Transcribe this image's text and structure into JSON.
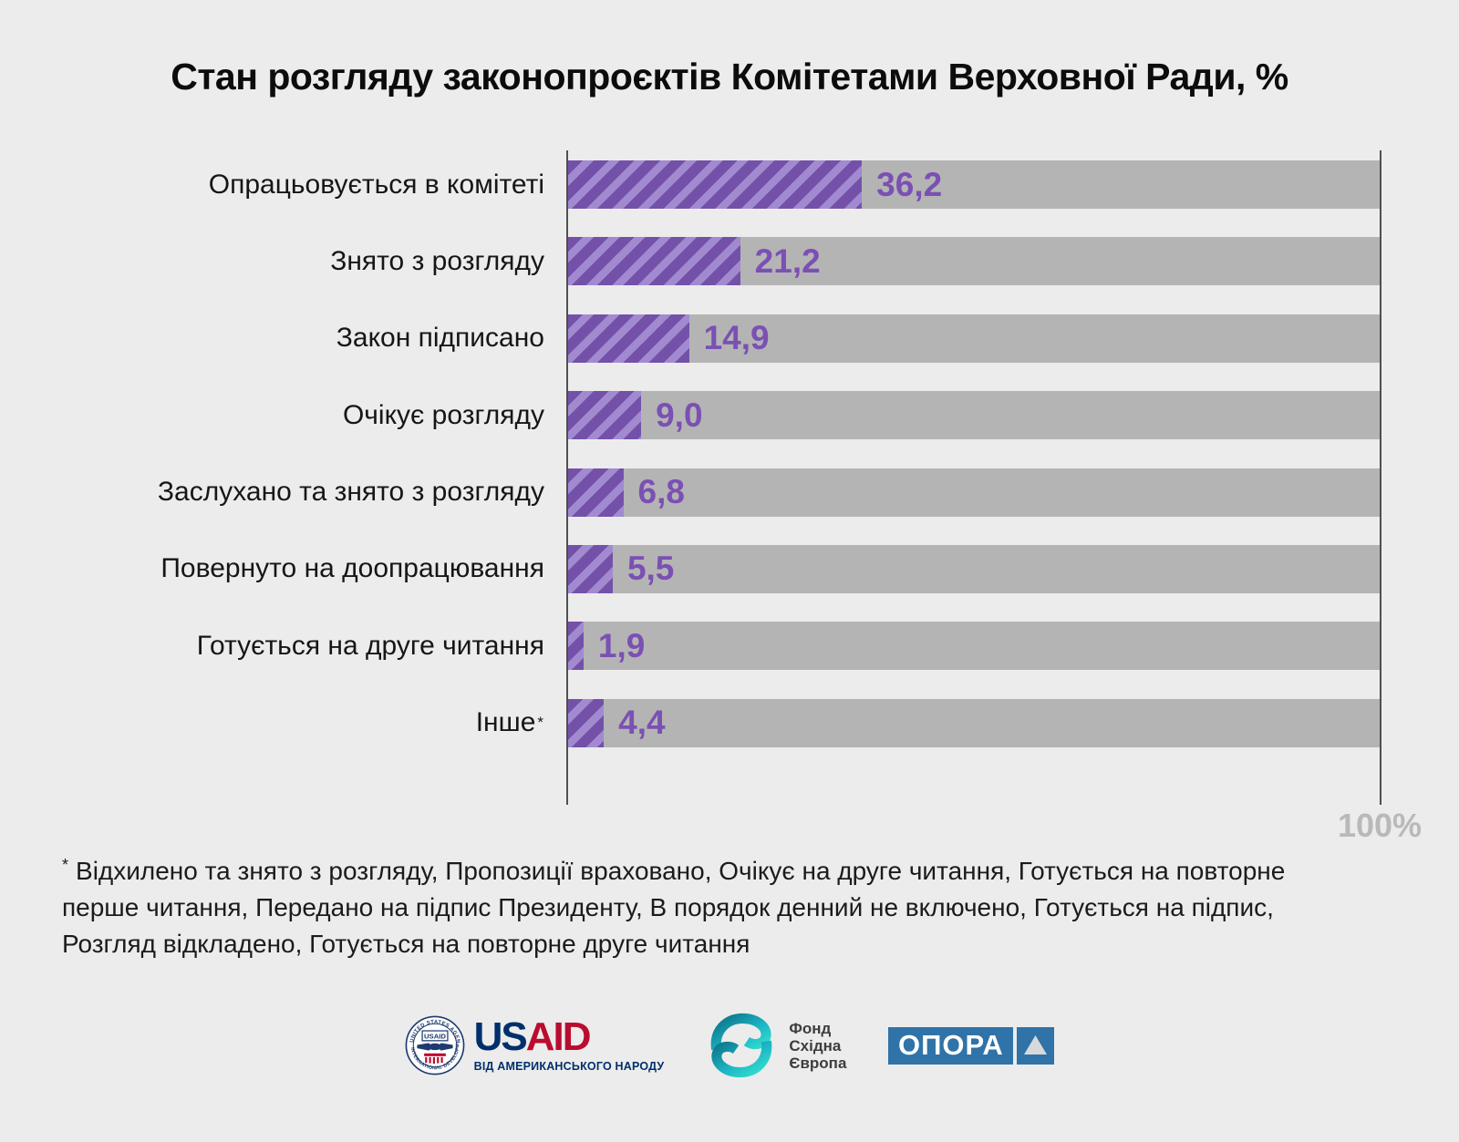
{
  "title": "Стан розгляду законопроєктів Комітетами Верховної Ради, %",
  "chart_data": {
    "type": "bar",
    "orientation": "horizontal",
    "title": "Стан розгляду законопроєктів Комітетами Верховної Ради, %",
    "categories": [
      "Опрацьовується в комітеті",
      "Знято з розгляду",
      "Закон підписано",
      "Очікує розгляду",
      "Заслухано та знято з розгляду",
      "Повернуто на доопрацювання",
      "Готується на друге читання",
      "Інше"
    ],
    "values": [
      36.2,
      21.2,
      14.9,
      9.0,
      6.8,
      5.5,
      1.9,
      4.4
    ],
    "value_labels": [
      "36,2",
      "21,2",
      "14,9",
      "9,0",
      "6,8",
      "5,5",
      "1,9",
      "4,4"
    ],
    "xlim": [
      0,
      100
    ],
    "axis_end_label": "100%",
    "grid": false,
    "legend": false,
    "colors": {
      "bar_stripe_dark": "#7451a9",
      "bar_stripe_light": "#a28ad0",
      "track": "#b4b4b4",
      "value_text": "#7b50b4",
      "axis_line": "#4f4f4f",
      "background": "#ececec",
      "hundred_label": "#b9b9b9"
    }
  },
  "footnote": {
    "marker": "*",
    "text": "Відхилено та знято з розгляду, Пропозиції враховано, Очікує на друге читання, Готується на повторне перше читання, Передано на підпис Президенту, В порядок денний не включено, Готується на підпис, Розгляд відкладено, Готується на повторне друге читання"
  },
  "footer": {
    "usaid": {
      "wordmark_us": "US",
      "wordmark_aid": "AID",
      "tagline": "ВІД АМЕРИКАНСЬКОГО НАРОДУ",
      "seal_top": "UNITED STATES AGENCY",
      "seal_bottom": "INTERNATIONAL DEVELOPMENT",
      "seal_center": "USAID",
      "navy": "#002f6c",
      "red": "#ba0c2f"
    },
    "eef": {
      "line1": "Фонд",
      "line2": "Східна",
      "line3": "Європа",
      "teal_dark": "#0c7186",
      "teal_light": "#35e3d0"
    },
    "opora": {
      "wordmark": "ОПОРА",
      "blue": "#2f73a9"
    }
  }
}
